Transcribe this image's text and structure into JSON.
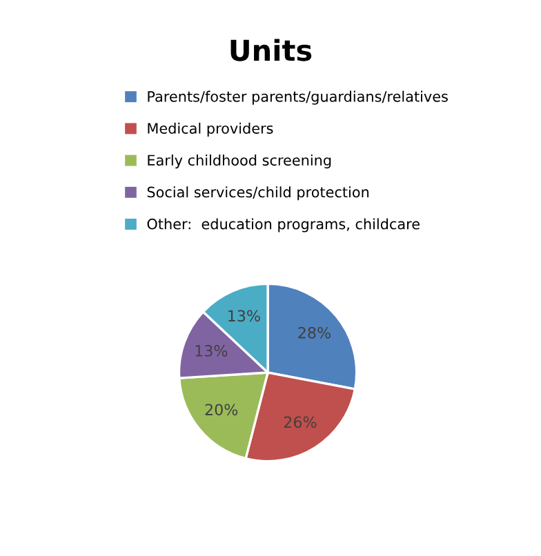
{
  "chart_data": {
    "type": "pie",
    "title": "Units",
    "categories": [
      "Parents/foster parents/guardians/relatives",
      "Medical providers",
      "Early childhood screening",
      "Social services/child protection",
      "Other:  education programs, childcare"
    ],
    "values": [
      28,
      26,
      20,
      13,
      13
    ],
    "colors": [
      "#4f81bd",
      "#c0504d",
      "#9bbb59",
      "#8064a2",
      "#4bacc6"
    ],
    "value_labels": [
      "28%",
      "26%",
      "20%",
      "13%",
      "13%"
    ],
    "legend": "top"
  }
}
